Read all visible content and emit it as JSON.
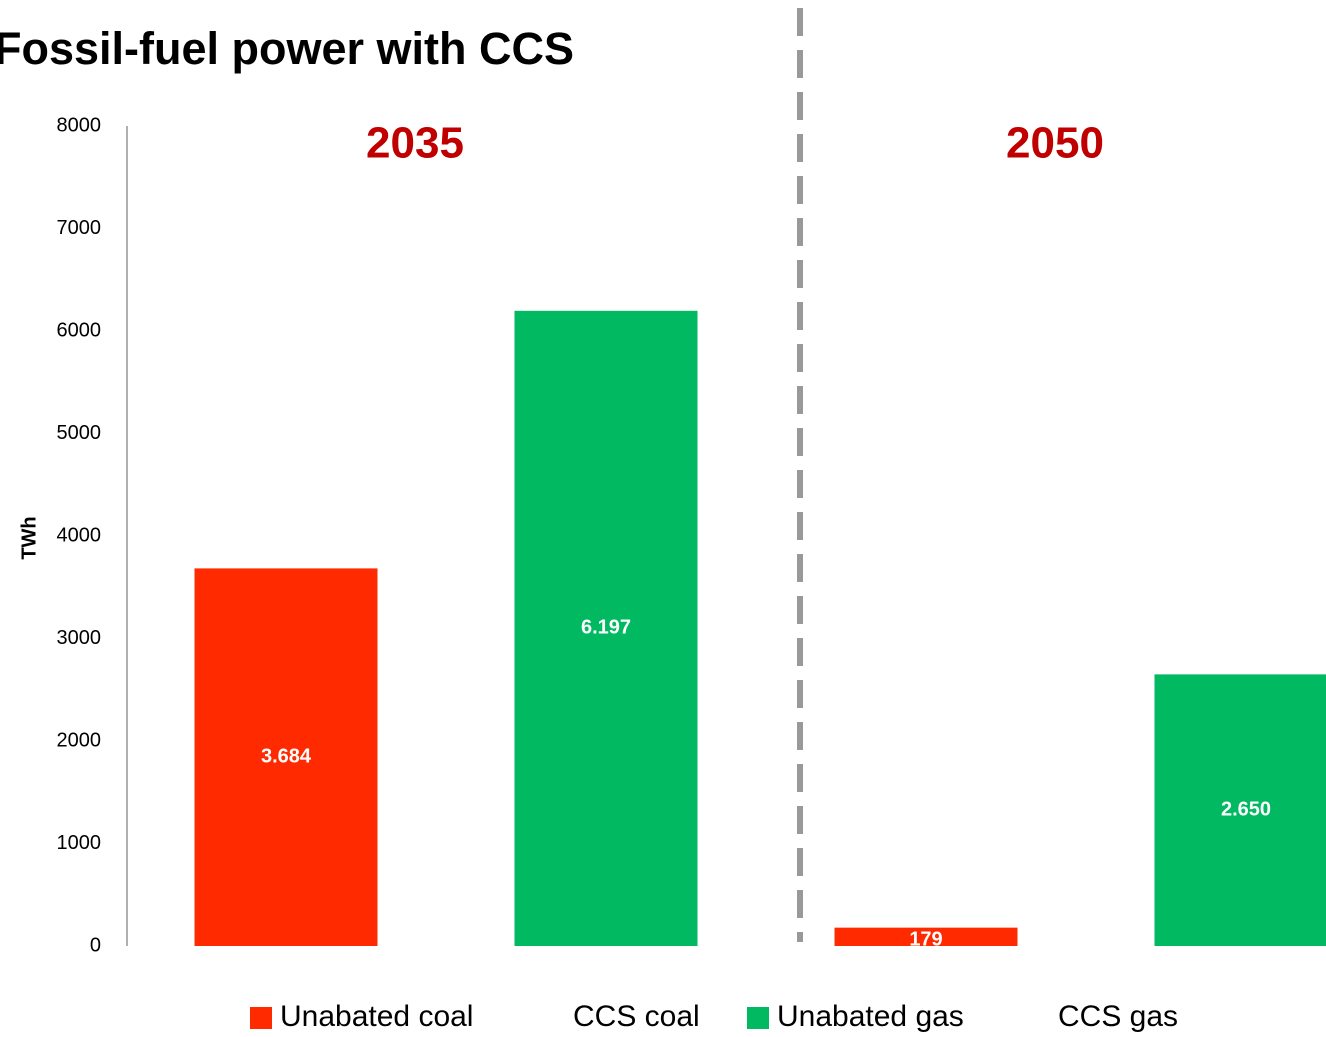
{
  "chart_data": {
    "type": "bar",
    "title": "Fossil-fuel power with CCS",
    "y_label": "TWh",
    "categories": [
      "2035",
      "2050"
    ],
    "series": [
      {
        "name": "Unabated coal",
        "color": "#ff2a00",
        "values": [
          3684,
          179
        ],
        "value_labels": [
          "3.684",
          "179"
        ]
      },
      {
        "name": "CCS coal",
        "values": [
          null,
          null
        ]
      },
      {
        "name": "Unabated gas",
        "color": "#00b960",
        "values": [
          6197,
          2650
        ],
        "value_labels": [
          "6.197",
          "2.650"
        ]
      },
      {
        "name": "CCS gas",
        "values": [
          null,
          null
        ]
      }
    ],
    "ylim": [
      0,
      8000
    ],
    "yticks": [
      0,
      1000,
      2000,
      3000,
      4000,
      5000,
      6000,
      7000,
      8000
    ],
    "category_label_color": "#c00000",
    "legend": "bottom"
  }
}
